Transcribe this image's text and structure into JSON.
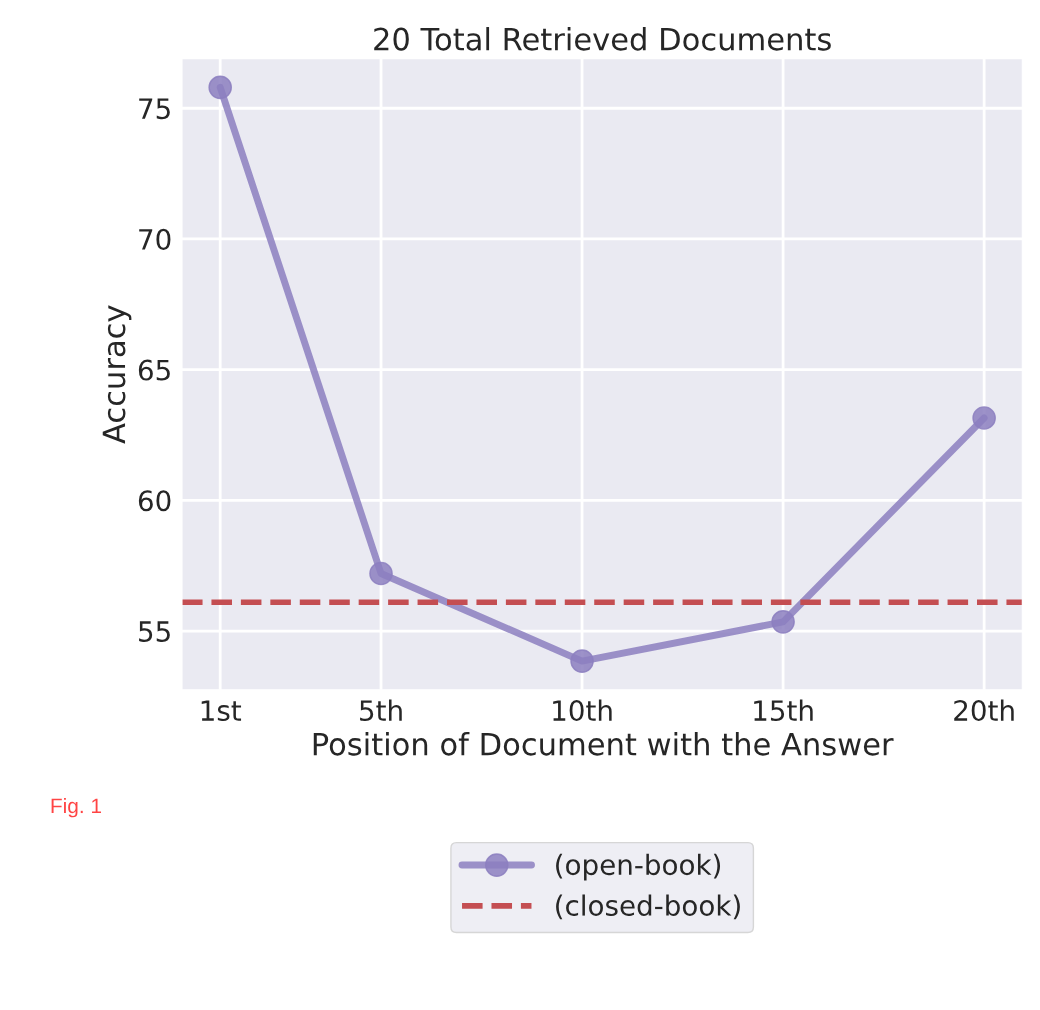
{
  "chart_data": {
    "type": "line",
    "title": "20 Total Retrieved Documents",
    "xlabel": "Position of Document with the Answer",
    "ylabel": "Accuracy",
    "x": [
      1,
      5,
      10,
      15,
      20
    ],
    "series": [
      {
        "name": "(open-book)",
        "color": "#8c7fc0",
        "values": [
          75.8,
          57.2,
          53.85,
          55.35,
          63.15
        ]
      }
    ],
    "ref_lines": [
      {
        "axis": "y",
        "value": 56.1,
        "label": "(closed-book)",
        "color": "#c44e52",
        "line_style": "dashed"
      }
    ],
    "xlim": [
      0.05,
      20.95
    ],
    "ylim": [
      52.75,
      76.9
    ],
    "xticks": [
      {
        "value": 1,
        "label": "1st"
      },
      {
        "value": 5,
        "label": "5th"
      },
      {
        "value": 10,
        "label": "10th"
      },
      {
        "value": 15,
        "label": "15th"
      },
      {
        "value": 20,
        "label": "20th"
      }
    ],
    "yticks": [
      55,
      60,
      65,
      70,
      75
    ],
    "annotations": [
      "Fig. 1"
    ],
    "grid": true,
    "legend": "bottom",
    "marker": "circle",
    "line_style": "solid"
  }
}
